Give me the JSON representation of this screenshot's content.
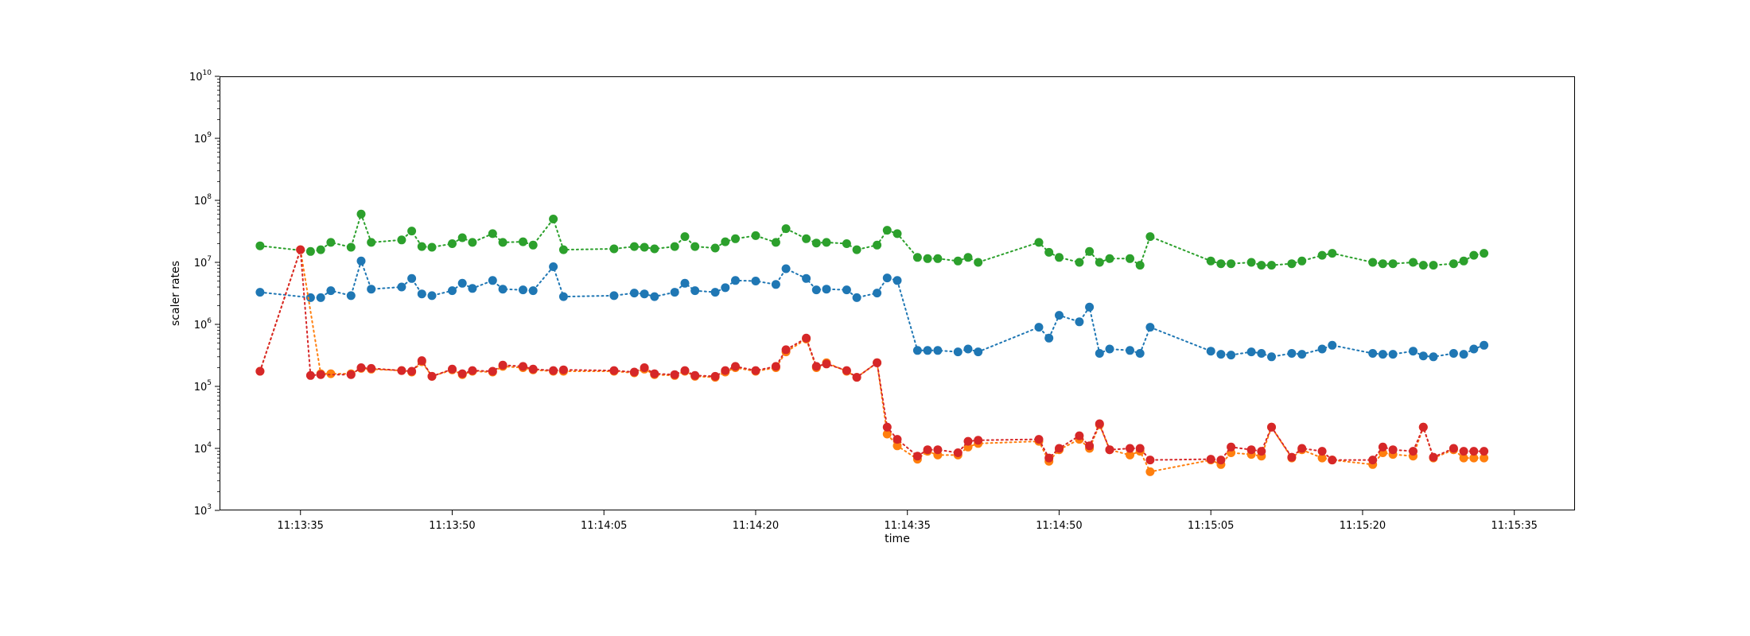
{
  "chart_data": {
    "type": "scatter",
    "title": "",
    "xlabel": "time",
    "ylabel": "scaler rates",
    "yscale": "log",
    "ylim": [
      1000,
      10000000000
    ],
    "xlim": [
      "11:13:27",
      "11:15:41"
    ],
    "grid": false,
    "y_ticks": [
      {
        "value": 1000,
        "base": "10",
        "exp": "3"
      },
      {
        "value": 10000,
        "base": "10",
        "exp": "4"
      },
      {
        "value": 100000,
        "base": "10",
        "exp": "5"
      },
      {
        "value": 1000000,
        "base": "10",
        "exp": "6"
      },
      {
        "value": 10000000,
        "base": "10",
        "exp": "7"
      },
      {
        "value": 100000000,
        "base": "10",
        "exp": "8"
      },
      {
        "value": 1000000000,
        "base": "10",
        "exp": "9"
      },
      {
        "value": 10000000000,
        "base": "10",
        "exp": "10"
      }
    ],
    "x_ticks": [
      "11:13:35",
      "11:13:50",
      "11:14:05",
      "11:14:20",
      "11:14:35",
      "11:14:50",
      "11:15:05",
      "11:15:20",
      "11:15:35"
    ],
    "x": [
      "11:13:31",
      "11:13:36",
      "11:13:37",
      "11:13:38",
      "11:13:40",
      "11:13:41",
      "11:13:42",
      "11:13:45",
      "11:13:46",
      "11:13:47",
      "11:13:48",
      "11:13:50",
      "11:13:51",
      "11:13:52",
      "11:13:54",
      "11:13:55",
      "11:13:57",
      "11:13:58",
      "11:14:00",
      "11:14:01",
      "11:14:06",
      "11:14:08",
      "11:14:09",
      "11:14:10",
      "11:14:12",
      "11:14:13",
      "11:14:14",
      "11:14:16",
      "11:14:17",
      "11:14:18",
      "11:14:20",
      "11:14:22",
      "11:14:23",
      "11:14:25",
      "11:14:26",
      "11:14:27",
      "11:14:29",
      "11:14:30",
      "11:14:32",
      "11:14:33",
      "11:14:34",
      "11:14:36",
      "11:14:37",
      "11:14:38",
      "11:14:40",
      "11:14:41",
      "11:14:42",
      "11:14:48",
      "11:14:49",
      "11:14:50",
      "11:14:52",
      "11:14:53",
      "11:14:54",
      "11:14:55",
      "11:14:57",
      "11:14:58",
      "11:14:59",
      "11:15:05",
      "11:15:06",
      "11:15:07",
      "11:15:09",
      "11:15:10",
      "11:15:11",
      "11:15:13",
      "11:15:14",
      "11:15:16",
      "11:15:17",
      "11:15:21",
      "11:15:22",
      "11:15:23",
      "11:15:25",
      "11:15:26",
      "11:15:27",
      "11:15:29",
      "11:15:30",
      "11:15:31",
      "11:15:32"
    ],
    "series": [
      {
        "name": "",
        "color": "#1f77b4",
        "x": [
          "11:13:31",
          "11:13:36",
          "11:13:37",
          "11:13:38",
          "11:13:40",
          "11:13:41",
          "11:13:42",
          "11:13:45",
          "11:13:46",
          "11:13:47",
          "11:13:48",
          "11:13:50",
          "11:13:51",
          "11:13:52",
          "11:13:54",
          "11:13:55",
          "11:13:57",
          "11:13:58",
          "11:14:00",
          "11:14:01",
          "11:14:06",
          "11:14:08",
          "11:14:09",
          "11:14:10",
          "11:14:12",
          "11:14:13",
          "11:14:14",
          "11:14:16",
          "11:14:17",
          "11:14:18",
          "11:14:20",
          "11:14:22",
          "11:14:23",
          "11:14:25",
          "11:14:26",
          "11:14:27",
          "11:14:29",
          "11:14:30",
          "11:14:32",
          "11:14:33",
          "11:14:34",
          "11:14:36",
          "11:14:37",
          "11:14:38",
          "11:14:40",
          "11:14:41",
          "11:14:42",
          "11:14:48",
          "11:14:49",
          "11:14:50",
          "11:14:52",
          "11:14:53",
          "11:14:54",
          "11:14:55",
          "11:14:57",
          "11:14:58",
          "11:14:59",
          "11:15:05",
          "11:15:06",
          "11:15:07",
          "11:15:09",
          "11:15:10",
          "11:15:11",
          "11:15:13",
          "11:15:14",
          "11:15:16",
          "11:15:17",
          "11:15:21",
          "11:15:22",
          "11:15:23",
          "11:15:25",
          "11:15:26",
          "11:15:27",
          "11:15:29",
          "11:15:30",
          "11:15:31",
          "11:15:32"
        ],
        "values": [
          3300000,
          2700000,
          2700000,
          3500000,
          2900000,
          10500000,
          3700000,
          4000000,
          5500000,
          3100000,
          2900000,
          3500000,
          4600000,
          3800000,
          5100000,
          3700000,
          3600000,
          3500000,
          8500000,
          2800000,
          2900000,
          3200000,
          3100000,
          2800000,
          3300000,
          4600000,
          3500000,
          3300000,
          3900000,
          5100000,
          5000000,
          4400000,
          7900000,
          5500000,
          3600000,
          3700000,
          3600000,
          2700000,
          3200000,
          5600000,
          5100000,
          380000,
          380000,
          380000,
          360000,
          400000,
          360000,
          900000,
          600000,
          1400000,
          1100000,
          1900000,
          340000,
          400000,
          380000,
          340000,
          900000,
          370000,
          330000,
          320000,
          360000,
          340000,
          300000,
          340000,
          330000,
          400000,
          460000,
          340000,
          330000,
          330000,
          370000,
          310000,
          300000,
          340000,
          330000,
          400000,
          460000
        ]
      },
      {
        "name": "",
        "color": "#2ca02c",
        "x": [
          "11:13:31",
          "11:13:36",
          "11:13:37",
          "11:13:38",
          "11:13:40",
          "11:13:41",
          "11:13:42",
          "11:13:45",
          "11:13:46",
          "11:13:47",
          "11:13:48",
          "11:13:50",
          "11:13:51",
          "11:13:52",
          "11:13:54",
          "11:13:55",
          "11:13:57",
          "11:13:58",
          "11:14:00",
          "11:14:01",
          "11:14:06",
          "11:14:08",
          "11:14:09",
          "11:14:10",
          "11:14:12",
          "11:14:13",
          "11:14:14",
          "11:14:16",
          "11:14:17",
          "11:14:18",
          "11:14:20",
          "11:14:22",
          "11:14:23",
          "11:14:25",
          "11:14:26",
          "11:14:27",
          "11:14:29",
          "11:14:30",
          "11:14:32",
          "11:14:33",
          "11:14:34",
          "11:14:36",
          "11:14:37",
          "11:14:38",
          "11:14:40",
          "11:14:41",
          "11:14:42",
          "11:14:48",
          "11:14:49",
          "11:14:50",
          "11:14:52",
          "11:14:53",
          "11:14:54",
          "11:14:55",
          "11:14:57",
          "11:14:58",
          "11:14:59",
          "11:15:05",
          "11:15:06",
          "11:15:07",
          "11:15:09",
          "11:15:10",
          "11:15:11",
          "11:15:13",
          "11:15:14",
          "11:15:16",
          "11:15:17",
          "11:15:21",
          "11:15:22",
          "11:15:23",
          "11:15:25",
          "11:15:26",
          "11:15:27",
          "11:15:29",
          "11:15:30",
          "11:15:31",
          "11:15:32"
        ],
        "values": [
          18500000,
          15000000,
          16000000,
          21000000,
          17500000,
          60000000,
          21000000,
          23000000,
          32000000,
          18000000,
          17500000,
          20000000,
          25000000,
          21000000,
          29000000,
          21000000,
          21500000,
          19000000,
          50000000,
          16000000,
          16500000,
          18000000,
          17500000,
          16500000,
          18000000,
          26000000,
          18000000,
          17000000,
          21500000,
          24000000,
          27000000,
          21000000,
          35000000,
          24000000,
          20500000,
          21000000,
          20000000,
          16000000,
          19000000,
          33000000,
          29000000,
          12000000,
          11500000,
          11500000,
          10500000,
          12000000,
          10000000,
          21000000,
          14500000,
          12000000,
          10000000,
          15000000,
          10000000,
          11500000,
          11500000,
          9000000,
          26000000,
          10500000,
          9500000,
          9500000,
          10000000,
          9000000,
          9000000,
          9500000,
          10500000,
          13000000,
          14000000,
          10000000,
          9500000,
          9500000,
          10000000,
          9000000,
          9000000,
          9500000,
          10500000,
          13000000,
          14000000
        ]
      },
      {
        "name": "",
        "color": "#ff7f0e",
        "x": [
          "11:13:31",
          "11:13:35",
          "11:13:37",
          "11:13:38",
          "11:13:40",
          "11:13:41",
          "11:13:42",
          "11:13:45",
          "11:13:46",
          "11:13:47",
          "11:13:48",
          "11:13:50",
          "11:13:51",
          "11:13:52",
          "11:13:54",
          "11:13:55",
          "11:13:57",
          "11:13:58",
          "11:14:00",
          "11:14:01",
          "11:14:06",
          "11:14:08",
          "11:14:09",
          "11:14:10",
          "11:14:12",
          "11:14:13",
          "11:14:14",
          "11:14:16",
          "11:14:17",
          "11:14:18",
          "11:14:20",
          "11:14:22",
          "11:14:23",
          "11:14:25",
          "11:14:26",
          "11:14:27",
          "11:14:29",
          "11:14:30",
          "11:14:32",
          "11:14:33",
          "11:14:34",
          "11:14:36",
          "11:14:37",
          "11:14:38",
          "11:14:40",
          "11:14:41",
          "11:14:42",
          "11:14:48",
          "11:14:49",
          "11:14:50",
          "11:14:52",
          "11:14:53",
          "11:14:54",
          "11:14:55",
          "11:14:57",
          "11:14:58",
          "11:14:59",
          "11:15:05",
          "11:15:06",
          "11:15:07",
          "11:15:09",
          "11:15:10",
          "11:15:11",
          "11:15:13",
          "11:15:14",
          "11:15:16",
          "11:15:17",
          "11:15:21",
          "11:15:22",
          "11:15:23",
          "11:15:25",
          "11:15:26",
          "11:15:27",
          "11:15:29",
          "11:15:30",
          "11:15:31",
          "11:15:32"
        ],
        "values": [
          175000,
          16000000,
          160000,
          160000,
          160000,
          195000,
          190000,
          180000,
          170000,
          250000,
          145000,
          185000,
          155000,
          175000,
          170000,
          210000,
          200000,
          185000,
          175000,
          175000,
          175000,
          165000,
          190000,
          155000,
          150000,
          175000,
          145000,
          140000,
          170000,
          200000,
          175000,
          200000,
          360000,
          580000,
          200000,
          240000,
          175000,
          140000,
          240000,
          17000,
          11000,
          6700,
          9000,
          7800,
          7800,
          10500,
          12000,
          13000,
          6200,
          9500,
          14000,
          10000,
          24000,
          9500,
          7800,
          9000,
          4200,
          6500,
          5500,
          8500,
          8000,
          7500,
          22000,
          7000,
          9500,
          7000,
          6500,
          5500,
          8500,
          8000,
          7500,
          22000,
          7000,
          9500,
          7000,
          7000,
          7000
        ]
      },
      {
        "name": "",
        "color": "#d62728",
        "x": [
          "11:13:31",
          "11:13:35",
          "11:13:36",
          "11:13:37",
          "11:13:40",
          "11:13:41",
          "11:13:42",
          "11:13:45",
          "11:13:46",
          "11:13:47",
          "11:13:48",
          "11:13:50",
          "11:13:51",
          "11:13:52",
          "11:13:54",
          "11:13:55",
          "11:13:57",
          "11:13:58",
          "11:14:00",
          "11:14:01",
          "11:14:06",
          "11:14:08",
          "11:14:09",
          "11:14:10",
          "11:14:12",
          "11:14:13",
          "11:14:14",
          "11:14:16",
          "11:14:17",
          "11:14:18",
          "11:14:20",
          "11:14:22",
          "11:14:23",
          "11:14:25",
          "11:14:26",
          "11:14:27",
          "11:14:29",
          "11:14:30",
          "11:14:32",
          "11:14:33",
          "11:14:34",
          "11:14:36",
          "11:14:37",
          "11:14:38",
          "11:14:40",
          "11:14:41",
          "11:14:42",
          "11:14:48",
          "11:14:49",
          "11:14:50",
          "11:14:52",
          "11:14:53",
          "11:14:54",
          "11:14:55",
          "11:14:57",
          "11:14:58",
          "11:14:59",
          "11:15:05",
          "11:15:06",
          "11:15:07",
          "11:15:09",
          "11:15:10",
          "11:15:11",
          "11:15:13",
          "11:15:14",
          "11:15:16",
          "11:15:17",
          "11:15:21",
          "11:15:22",
          "11:15:23",
          "11:15:25",
          "11:15:26",
          "11:15:27",
          "11:15:29",
          "11:15:30",
          "11:15:31",
          "11:15:32"
        ],
        "values": [
          175000,
          16000000,
          150000,
          155000,
          155000,
          200000,
          195000,
          180000,
          175000,
          260000,
          145000,
          190000,
          160000,
          180000,
          175000,
          220000,
          210000,
          190000,
          180000,
          185000,
          180000,
          170000,
          200000,
          160000,
          155000,
          180000,
          150000,
          145000,
          180000,
          210000,
          180000,
          210000,
          390000,
          600000,
          210000,
          230000,
          180000,
          140000,
          240000,
          22000,
          14000,
          7500,
          9500,
          9500,
          8500,
          13000,
          13500,
          14000,
          7000,
          10000,
          16000,
          11000,
          25000,
          9500,
          10000,
          10000,
          6500,
          6700,
          6500,
          10500,
          9500,
          9000,
          22000,
          7200,
          10000,
          9000,
          6500,
          6500,
          10500,
          9500,
          9000,
          22000,
          7200,
          10000,
          9000,
          9000,
          9000
        ]
      }
    ]
  }
}
